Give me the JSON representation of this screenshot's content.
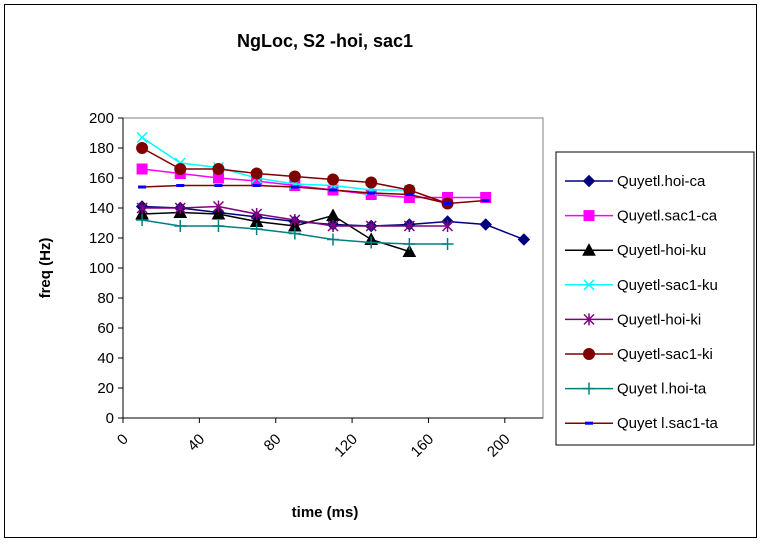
{
  "chart_data": {
    "type": "line",
    "title": "NgLoc, S2 -hoi, sac1",
    "xlabel": "time (ms)",
    "ylabel": "freq (Hz)",
    "xlim": [
      0,
      220
    ],
    "ylim": [
      0,
      200
    ],
    "xticks": [
      0,
      40,
      80,
      120,
      160,
      200
    ],
    "yticks": [
      0,
      20,
      40,
      60,
      80,
      100,
      120,
      140,
      160,
      180,
      200
    ],
    "grid": false,
    "legend_position": "right",
    "series": [
      {
        "name": "Quyetl.hoi-ca",
        "color": "#000080",
        "marker": "diamond",
        "x": [
          10,
          30,
          50,
          70,
          90,
          110,
          130,
          150,
          170,
          190,
          210
        ],
        "y": [
          141,
          140,
          137,
          134,
          131,
          129,
          128,
          129,
          131,
          129,
          119
        ]
      },
      {
        "name": "Quyetl.sac1-ca",
        "color": "#ff00ff",
        "marker": "square",
        "x": [
          10,
          30,
          50,
          70,
          90,
          110,
          130,
          150,
          170,
          190
        ],
        "y": [
          166,
          163,
          160,
          158,
          155,
          152,
          149,
          147,
          147,
          147
        ]
      },
      {
        "name": "Quyetl-hoi-ku",
        "color": "#000000",
        "marker": "triangle",
        "x": [
          10,
          30,
          50,
          70,
          90,
          110,
          130,
          150
        ],
        "y": [
          136,
          137,
          136,
          131,
          128,
          135,
          119,
          111
        ]
      },
      {
        "name": "Quyetl-sac1-ku",
        "color": "#00ffff",
        "marker": "x",
        "x": [
          10,
          30,
          50,
          70,
          90,
          110,
          130,
          150
        ],
        "y": [
          187,
          170,
          167,
          160,
          156,
          155,
          152,
          152
        ]
      },
      {
        "name": "Quyetl-hoi-ki",
        "color": "#800080",
        "marker": "star",
        "x": [
          10,
          30,
          50,
          70,
          90,
          110,
          130,
          150,
          170
        ],
        "y": [
          140,
          140,
          141,
          136,
          132,
          128,
          128,
          128,
          128
        ]
      },
      {
        "name": "Quyetl-sac1-ki",
        "color": "#800000",
        "marker": "circle",
        "x": [
          10,
          30,
          50,
          70,
          90,
          110,
          130,
          150,
          170
        ],
        "y": [
          180,
          166,
          166,
          163,
          161,
          159,
          157,
          152,
          143
        ]
      },
      {
        "name": "Quyet l.hoi-ta",
        "color": "#008080",
        "marker": "plus",
        "x": [
          10,
          30,
          50,
          70,
          90,
          110,
          130,
          150,
          170
        ],
        "y": [
          132,
          128,
          128,
          126,
          123,
          119,
          117,
          116,
          116
        ]
      },
      {
        "name": "Quyet l.sac1-ta",
        "color": "#0000ff",
        "marker": "dash",
        "line_color": "#800000",
        "x": [
          10,
          30,
          50,
          70,
          90,
          110,
          130,
          150,
          170,
          190
        ],
        "y": [
          154,
          155,
          155,
          155,
          154,
          152,
          150,
          149,
          143,
          145
        ]
      }
    ]
  }
}
